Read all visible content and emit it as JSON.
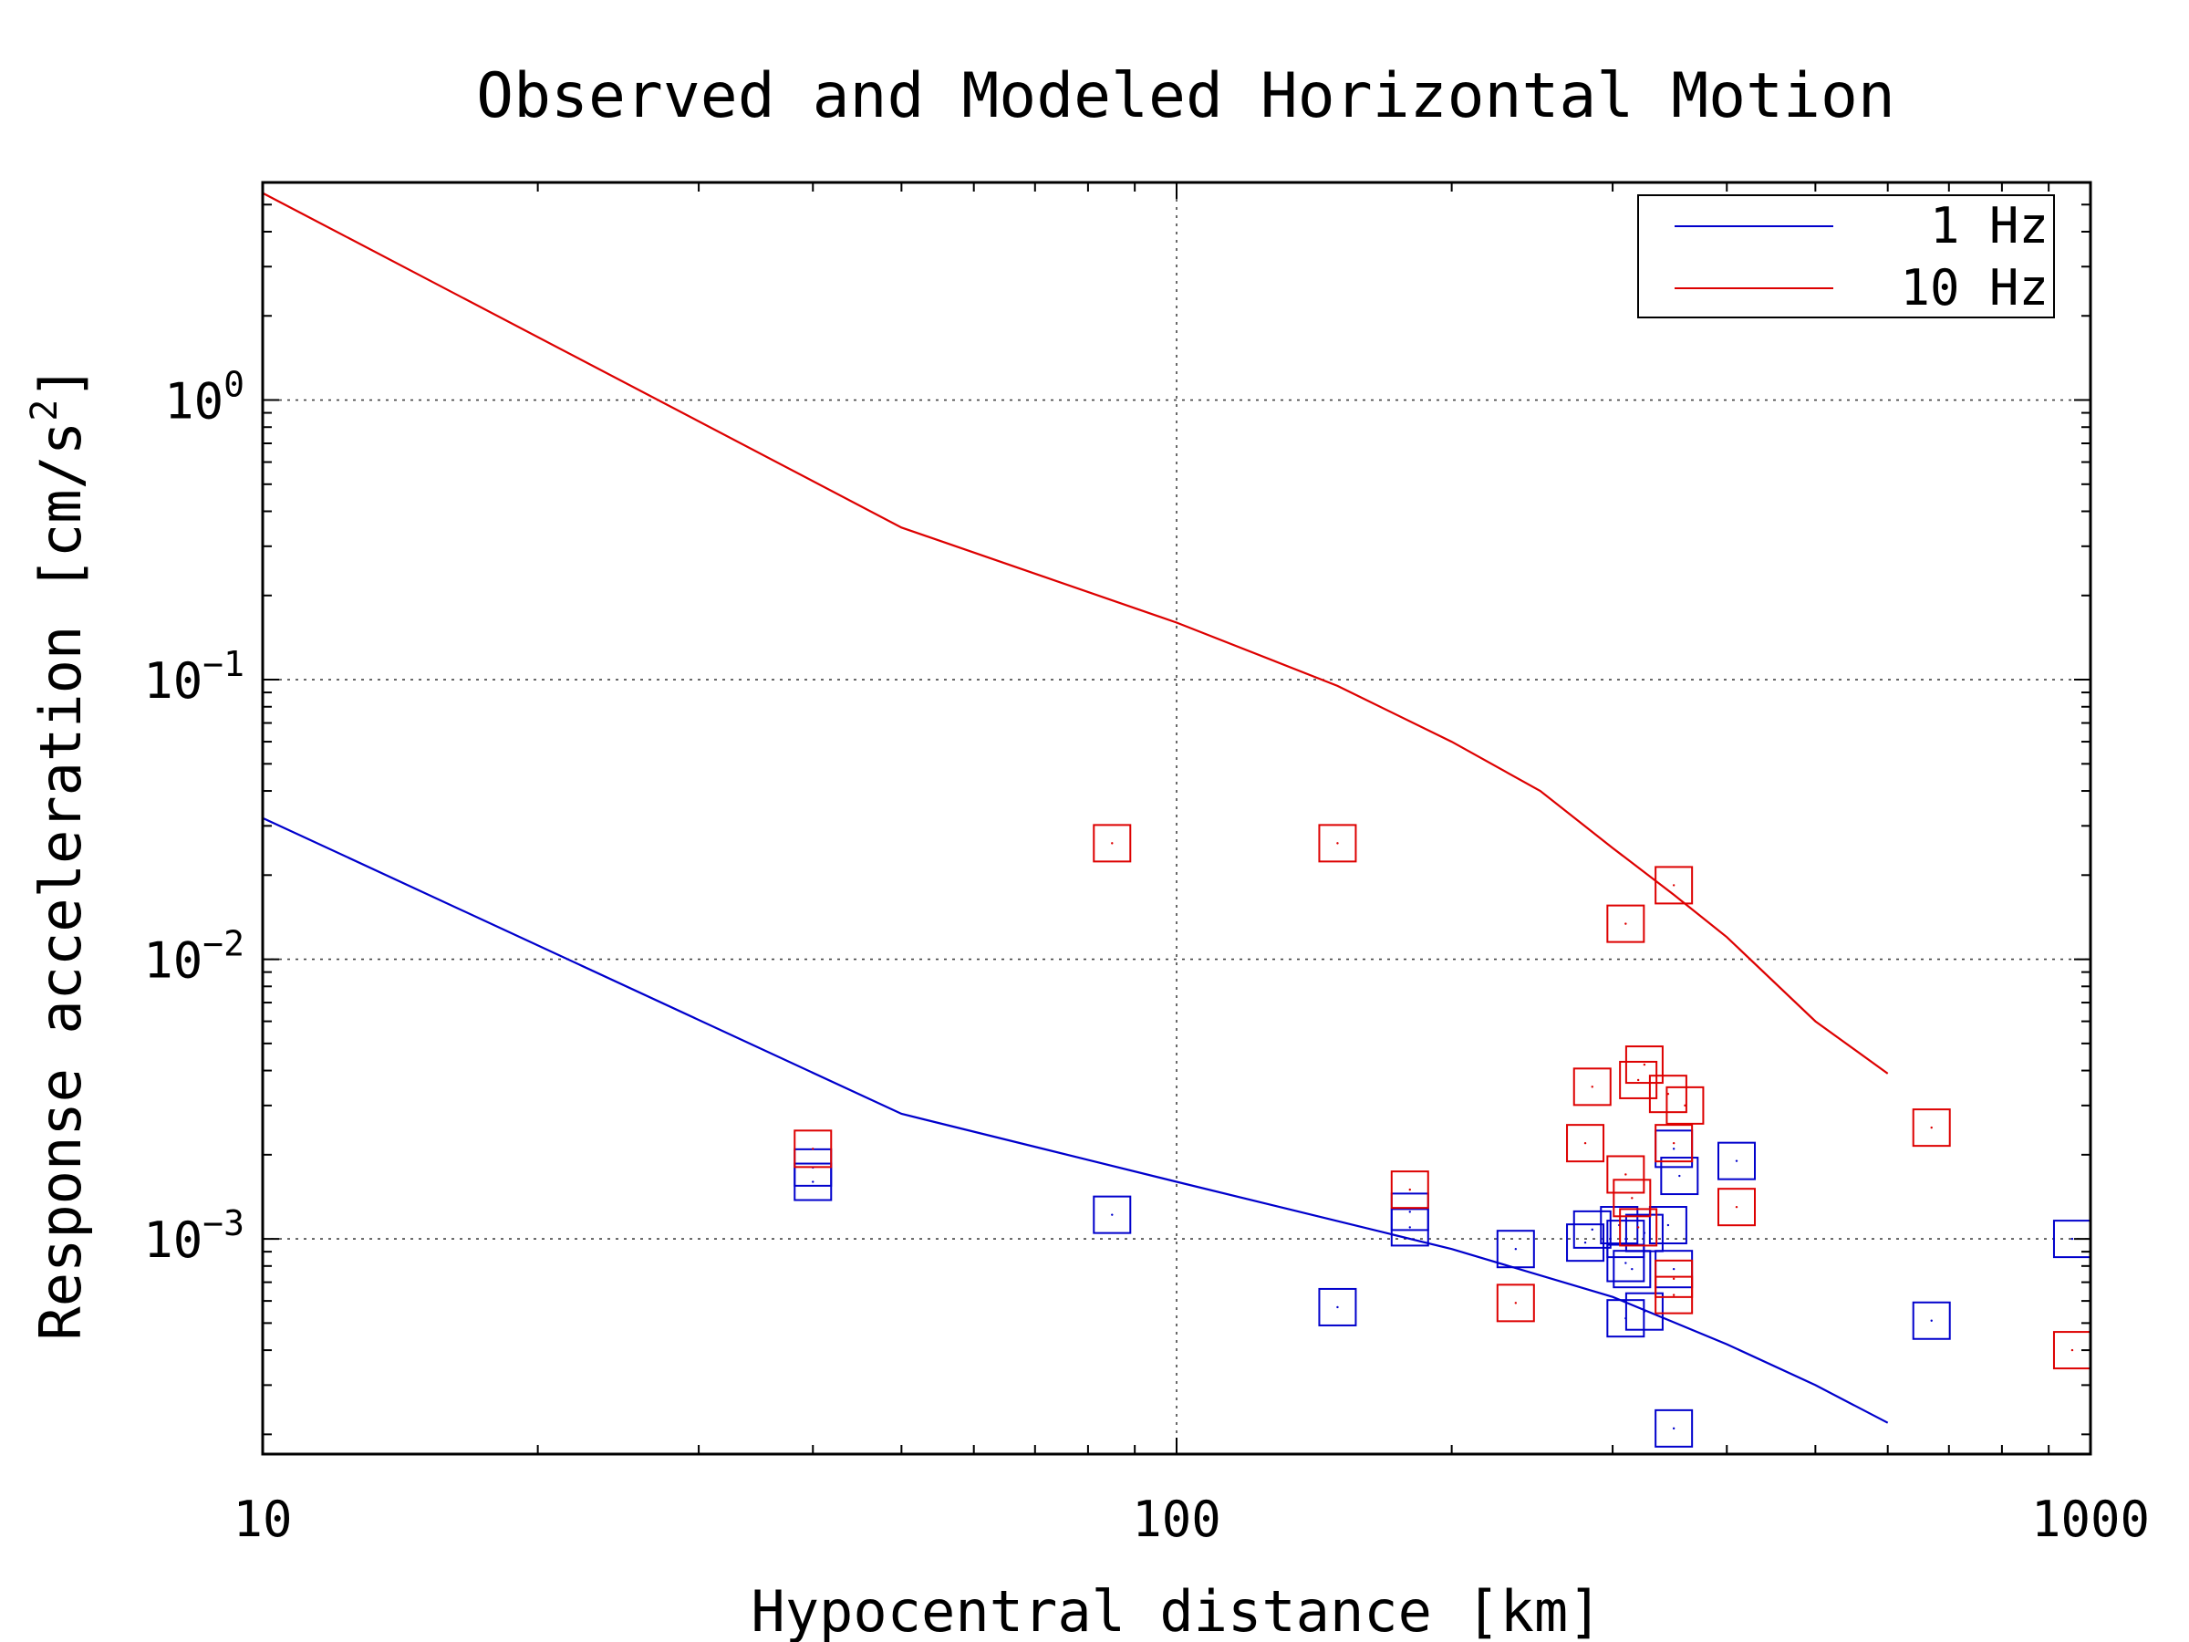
{
  "chart_data": {
    "type": "scatter",
    "title": "Observed and Modeled Horizontal Motion",
    "xlabel": "Hypocentral distance [km]",
    "ylabel": {
      "main": "Response acceleration [cm/s",
      "sup": "2",
      "end": "]"
    },
    "xscale": "log",
    "yscale": "log",
    "xlim": [
      10,
      1000
    ],
    "ylim": [
      0.00017,
      6.0
    ],
    "grid": true,
    "legend_position": "top-right",
    "x_ticks": [
      {
        "value": 10,
        "label": "10"
      },
      {
        "value": 100,
        "label": "100"
      },
      {
        "value": 1000,
        "label": "1000"
      }
    ],
    "y_ticks": [
      {
        "value": 1,
        "base": "10",
        "exp": "0"
      },
      {
        "value": 0.1,
        "base": "10",
        "exp": "−1"
      },
      {
        "value": 0.01,
        "base": "10",
        "exp": "−2"
      },
      {
        "value": 0.001,
        "base": "10",
        "exp": "−3"
      }
    ],
    "series": [
      {
        "name": "1 Hz",
        "color": "#0000cc",
        "model_line": [
          {
            "x": 10,
            "y": 0.032
          },
          {
            "x": 50,
            "y": 0.0028
          },
          {
            "x": 100,
            "y": 0.0016
          },
          {
            "x": 200,
            "y": 0.00092
          },
          {
            "x": 300,
            "y": 0.00062
          },
          {
            "x": 400,
            "y": 0.00042
          },
          {
            "x": 500,
            "y": 0.0003
          },
          {
            "x": 600,
            "y": 0.00022
          }
        ],
        "observed": [
          {
            "x": 40,
            "y": 0.0018
          },
          {
            "x": 40,
            "y": 0.0016
          },
          {
            "x": 85,
            "y": 0.00122
          },
          {
            "x": 150,
            "y": 0.00057
          },
          {
            "x": 180,
            "y": 0.0011
          },
          {
            "x": 180,
            "y": 0.00125
          },
          {
            "x": 235,
            "y": 0.00092
          },
          {
            "x": 280,
            "y": 0.00097
          },
          {
            "x": 285,
            "y": 0.00108
          },
          {
            "x": 305,
            "y": 0.00112
          },
          {
            "x": 310,
            "y": 0.001
          },
          {
            "x": 310,
            "y": 0.00082
          },
          {
            "x": 315,
            "y": 0.00078
          },
          {
            "x": 325,
            "y": 0.00105
          },
          {
            "x": 310,
            "y": 0.00052
          },
          {
            "x": 325,
            "y": 0.00055
          },
          {
            "x": 345,
            "y": 0.00112
          },
          {
            "x": 350,
            "y": 0.00078
          },
          {
            "x": 350,
            "y": 0.0021
          },
          {
            "x": 355,
            "y": 0.00168
          },
          {
            "x": 350,
            "y": 0.00021
          },
          {
            "x": 410,
            "y": 0.0019
          },
          {
            "x": 670,
            "y": 0.00051
          },
          {
            "x": 955,
            "y": 0.001
          }
        ]
      },
      {
        "name": "10 Hz",
        "color": "#dd0000",
        "model_line": [
          {
            "x": 10,
            "y": 5.5
          },
          {
            "x": 50,
            "y": 0.35
          },
          {
            "x": 100,
            "y": 0.16
          },
          {
            "x": 150,
            "y": 0.095
          },
          {
            "x": 200,
            "y": 0.06
          },
          {
            "x": 250,
            "y": 0.04
          },
          {
            "x": 300,
            "y": 0.025
          },
          {
            "x": 350,
            "y": 0.017
          },
          {
            "x": 400,
            "y": 0.012
          },
          {
            "x": 500,
            "y": 0.006
          },
          {
            "x": 600,
            "y": 0.0039
          }
        ],
        "observed": [
          {
            "x": 40,
            "y": 0.0021
          },
          {
            "x": 85,
            "y": 0.026
          },
          {
            "x": 150,
            "y": 0.026
          },
          {
            "x": 180,
            "y": 0.0015
          },
          {
            "x": 235,
            "y": 0.00059
          },
          {
            "x": 280,
            "y": 0.0022
          },
          {
            "x": 285,
            "y": 0.0035
          },
          {
            "x": 310,
            "y": 0.0134
          },
          {
            "x": 310,
            "y": 0.0017
          },
          {
            "x": 315,
            "y": 0.0014
          },
          {
            "x": 320,
            "y": 0.0037
          },
          {
            "x": 325,
            "y": 0.0042
          },
          {
            "x": 320,
            "y": 0.0011
          },
          {
            "x": 345,
            "y": 0.0033
          },
          {
            "x": 350,
            "y": 0.0184
          },
          {
            "x": 350,
            "y": 0.0022
          },
          {
            "x": 360,
            "y": 0.003
          },
          {
            "x": 350,
            "y": 0.00072
          },
          {
            "x": 350,
            "y": 0.00063
          },
          {
            "x": 410,
            "y": 0.0013
          },
          {
            "x": 670,
            "y": 0.0025
          },
          {
            "x": 955,
            "y": 0.0004
          }
        ]
      }
    ]
  }
}
